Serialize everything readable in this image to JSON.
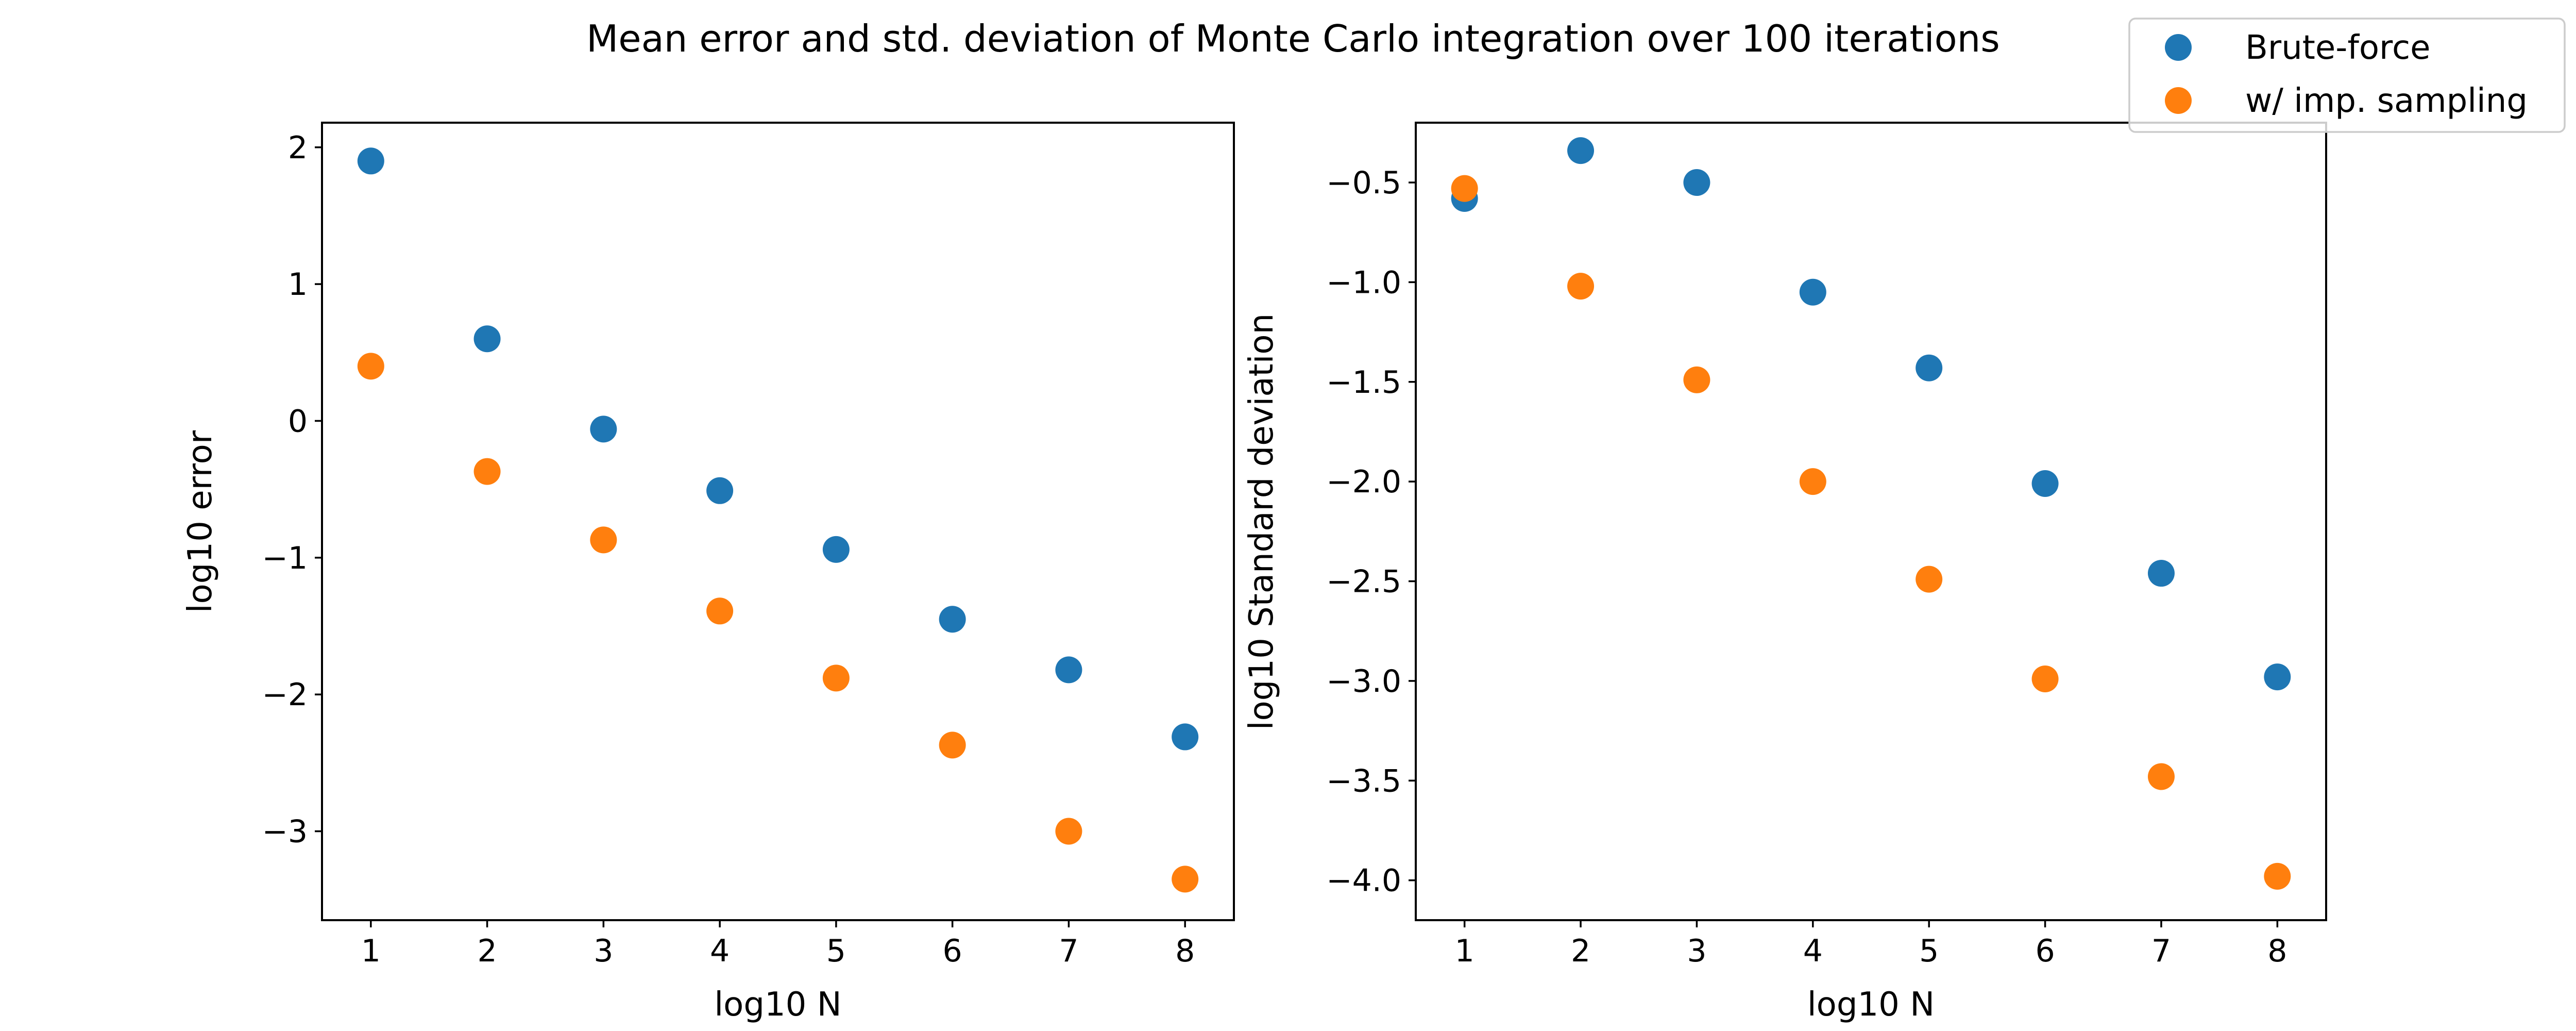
{
  "figure": {
    "title": "Mean error and std. deviation of Monte Carlo integration over 100 iterations"
  },
  "legend": {
    "placement": "top-right",
    "entries": [
      {
        "name": "Brute-force",
        "color": "#1f77b4"
      },
      {
        "name": "w/ imp. sampling",
        "color": "#ff7f0e"
      }
    ]
  },
  "chart_data": [
    {
      "type": "scatter",
      "title": "",
      "xlabel": "log10 N",
      "ylabel": "log10 error",
      "xlim": [
        0.58,
        8.42
      ],
      "ylim": [
        -3.65,
        2.18
      ],
      "xticks": [
        1,
        2,
        3,
        4,
        5,
        6,
        7,
        8
      ],
      "yticks": [
        -3,
        -2,
        -1,
        0,
        1,
        2
      ],
      "grid": false,
      "x": [
        1,
        2,
        3,
        4,
        5,
        6,
        7,
        8
      ],
      "series": [
        {
          "name": "Brute-force",
          "color": "#1f77b4",
          "values": [
            1.9,
            0.6,
            -0.06,
            -0.51,
            -0.94,
            -1.45,
            -1.82,
            -2.31
          ]
        },
        {
          "name": "w/ imp. sampling",
          "color": "#ff7f0e",
          "values": [
            0.4,
            -0.37,
            -0.87,
            -1.39,
            -1.88,
            -2.37,
            -3.0,
            -3.35
          ]
        }
      ]
    },
    {
      "type": "scatter",
      "title": "",
      "xlabel": "log10 N",
      "ylabel": "log10 Standard deviation",
      "xlim": [
        0.58,
        8.42
      ],
      "ylim": [
        -4.2,
        -0.2
      ],
      "xticks": [
        1,
        2,
        3,
        4,
        5,
        6,
        7,
        8
      ],
      "yticks": [
        -4.0,
        -3.5,
        -3.0,
        -2.5,
        -2.0,
        -1.5,
        -1.0,
        -0.5
      ],
      "ytick_labels": [
        "−4.0",
        "−3.5",
        "−3.0",
        "−2.5",
        "−2.0",
        "−1.5",
        "−1.0",
        "−0.5"
      ],
      "grid": false,
      "x": [
        1,
        2,
        3,
        4,
        5,
        6,
        7,
        8
      ],
      "series": [
        {
          "name": "Brute-force",
          "color": "#1f77b4",
          "values": [
            -0.58,
            -0.34,
            -0.5,
            -1.05,
            -1.43,
            -2.01,
            -2.46,
            -2.98
          ]
        },
        {
          "name": "w/ imp. sampling",
          "color": "#ff7f0e",
          "values": [
            -0.53,
            -1.02,
            -1.49,
            -2.0,
            -2.49,
            -2.99,
            -3.48,
            -3.98
          ]
        }
      ]
    }
  ]
}
